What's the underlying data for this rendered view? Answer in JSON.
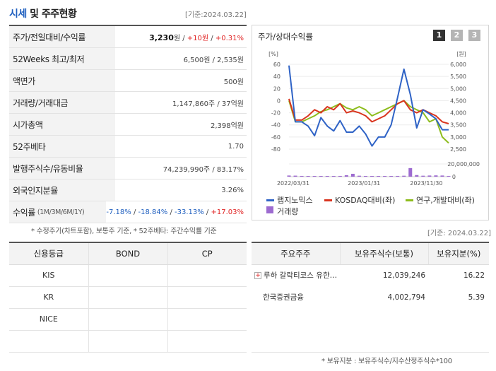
{
  "header": {
    "title_accent": "시세",
    "title_rest": " 및 주주현황",
    "date": "[기준:2024.03.22]"
  },
  "price_table": {
    "rows": [
      {
        "label": "주가/전일대비/수익률"
      },
      {
        "label": "52Weeks 최고/최저",
        "value": "6,500원 / 2,535원"
      },
      {
        "label": "액면가",
        "value": "500원"
      },
      {
        "label": "거래량/거래대금",
        "value": "1,147,860주 / 37억원"
      },
      {
        "label": "시가총액",
        "value": "2,398억원"
      },
      {
        "label": "52주베타",
        "value": "1.70"
      },
      {
        "label": "발행주식수/유동비율",
        "value": "74,239,990주 / 83.17%"
      },
      {
        "label": "외국인지분율",
        "value": "3.26%"
      },
      {
        "label": "수익률",
        "sub": "(1M/3M/6M/1Y)"
      }
    ],
    "price": "3,230",
    "price_unit": "원",
    "slash": " / ",
    "change": "+10원",
    "change_rate": "+0.31%",
    "returns": [
      "-7.18%",
      "-18.84%",
      "-33.13%",
      "+17.03%"
    ],
    "note": "* 수정주가(차트포함), 보통주 기준, * 52주베타: 주간수익률 기준"
  },
  "chart_panel": {
    "title": "주가/상대수익률",
    "pages": [
      "1",
      "2",
      "3"
    ],
    "left_unit": "[%]",
    "right_unit": "[원]",
    "legend": [
      "랩지노믹스",
      "KOSDAQ대비(좌)",
      "연구,개발대비(좌)",
      "거래량"
    ],
    "colors": {
      "stock": "#2f63c6",
      "kosdaq": "#d9341e",
      "rnd": "#8dbc1c",
      "volume": "#9d6bd0"
    }
  },
  "chart_data": {
    "type": "line",
    "x_ticks": [
      "2022/03/31",
      "2023/01/31",
      "2023/11/30"
    ],
    "left_axis": {
      "ticks": [
        "60",
        "40",
        "20",
        "0",
        "-20",
        "-40",
        "-60",
        "-80"
      ],
      "range": [
        -80,
        60
      ]
    },
    "right_axis": {
      "ticks": [
        "6,000",
        "5,500",
        "5,000",
        "4,500",
        "4,000",
        "3,500",
        "3,000",
        "2,500"
      ],
      "range": [
        2500,
        6000
      ]
    },
    "volume_axis": {
      "ticks": [
        "20,000,000",
        "0"
      ],
      "range": [
        0,
        20000000
      ]
    },
    "series": [
      {
        "name": "랩지노믹스",
        "values": [
          58,
          -35,
          -35,
          -42,
          -58,
          -28,
          -42,
          -50,
          -33,
          -52,
          -52,
          -42,
          -55,
          -75,
          -60,
          -60,
          -40,
          5,
          52,
          10,
          -45,
          -15,
          -22,
          -30,
          -48,
          -48
        ]
      },
      {
        "name": "KOSDAQ대비(좌)",
        "values": [
          3,
          -32,
          -32,
          -25,
          -15,
          -20,
          -10,
          -15,
          -5,
          -20,
          -17,
          -20,
          -25,
          -35,
          -30,
          -25,
          -15,
          -5,
          0,
          -15,
          -20,
          -15,
          -20,
          -25,
          -35,
          -38
        ]
      },
      {
        "name": "연구,개발대비(좌)",
        "values": [
          0,
          -35,
          -35,
          -30,
          -25,
          -18,
          -15,
          -10,
          -5,
          -12,
          -15,
          -10,
          -15,
          -25,
          -20,
          -15,
          -10,
          -5,
          0,
          -10,
          -15,
          -20,
          -35,
          -30,
          -60,
          -70
        ]
      },
      {
        "name": "거래량",
        "values": [
          1800000,
          1600000,
          1200000,
          900000,
          1100000,
          800000,
          700000,
          900000,
          1200000,
          2300000,
          4500000,
          1500000,
          1000000,
          700000,
          600000,
          500000,
          700000,
          1200000,
          1500000,
          13500000,
          2500000,
          1500000,
          1800000,
          2000000,
          1800000,
          1200000
        ]
      }
    ]
  },
  "credit_table": {
    "headers": [
      "신용등급",
      "BOND",
      "CP"
    ],
    "rows": [
      [
        "KIS",
        "",
        ""
      ],
      [
        "KR",
        "",
        ""
      ],
      [
        "NICE",
        "",
        ""
      ],
      [
        "",
        "",
        ""
      ]
    ]
  },
  "shareholder_table": {
    "date": "[기준: 2024.03.22]",
    "headers": [
      "주요주주",
      "보유주식수(보통)",
      "보유지분(%)"
    ],
    "rows": [
      {
        "name": "루하 갈락티코스 유한…",
        "shares": "12,039,246",
        "ratio": "16.22"
      },
      {
        "name": "한국증권금융",
        "shares": "4,002,794",
        "ratio": "5.39"
      }
    ],
    "note": "* 보유지분 : 보유주식수/지수산정주식수*100"
  }
}
